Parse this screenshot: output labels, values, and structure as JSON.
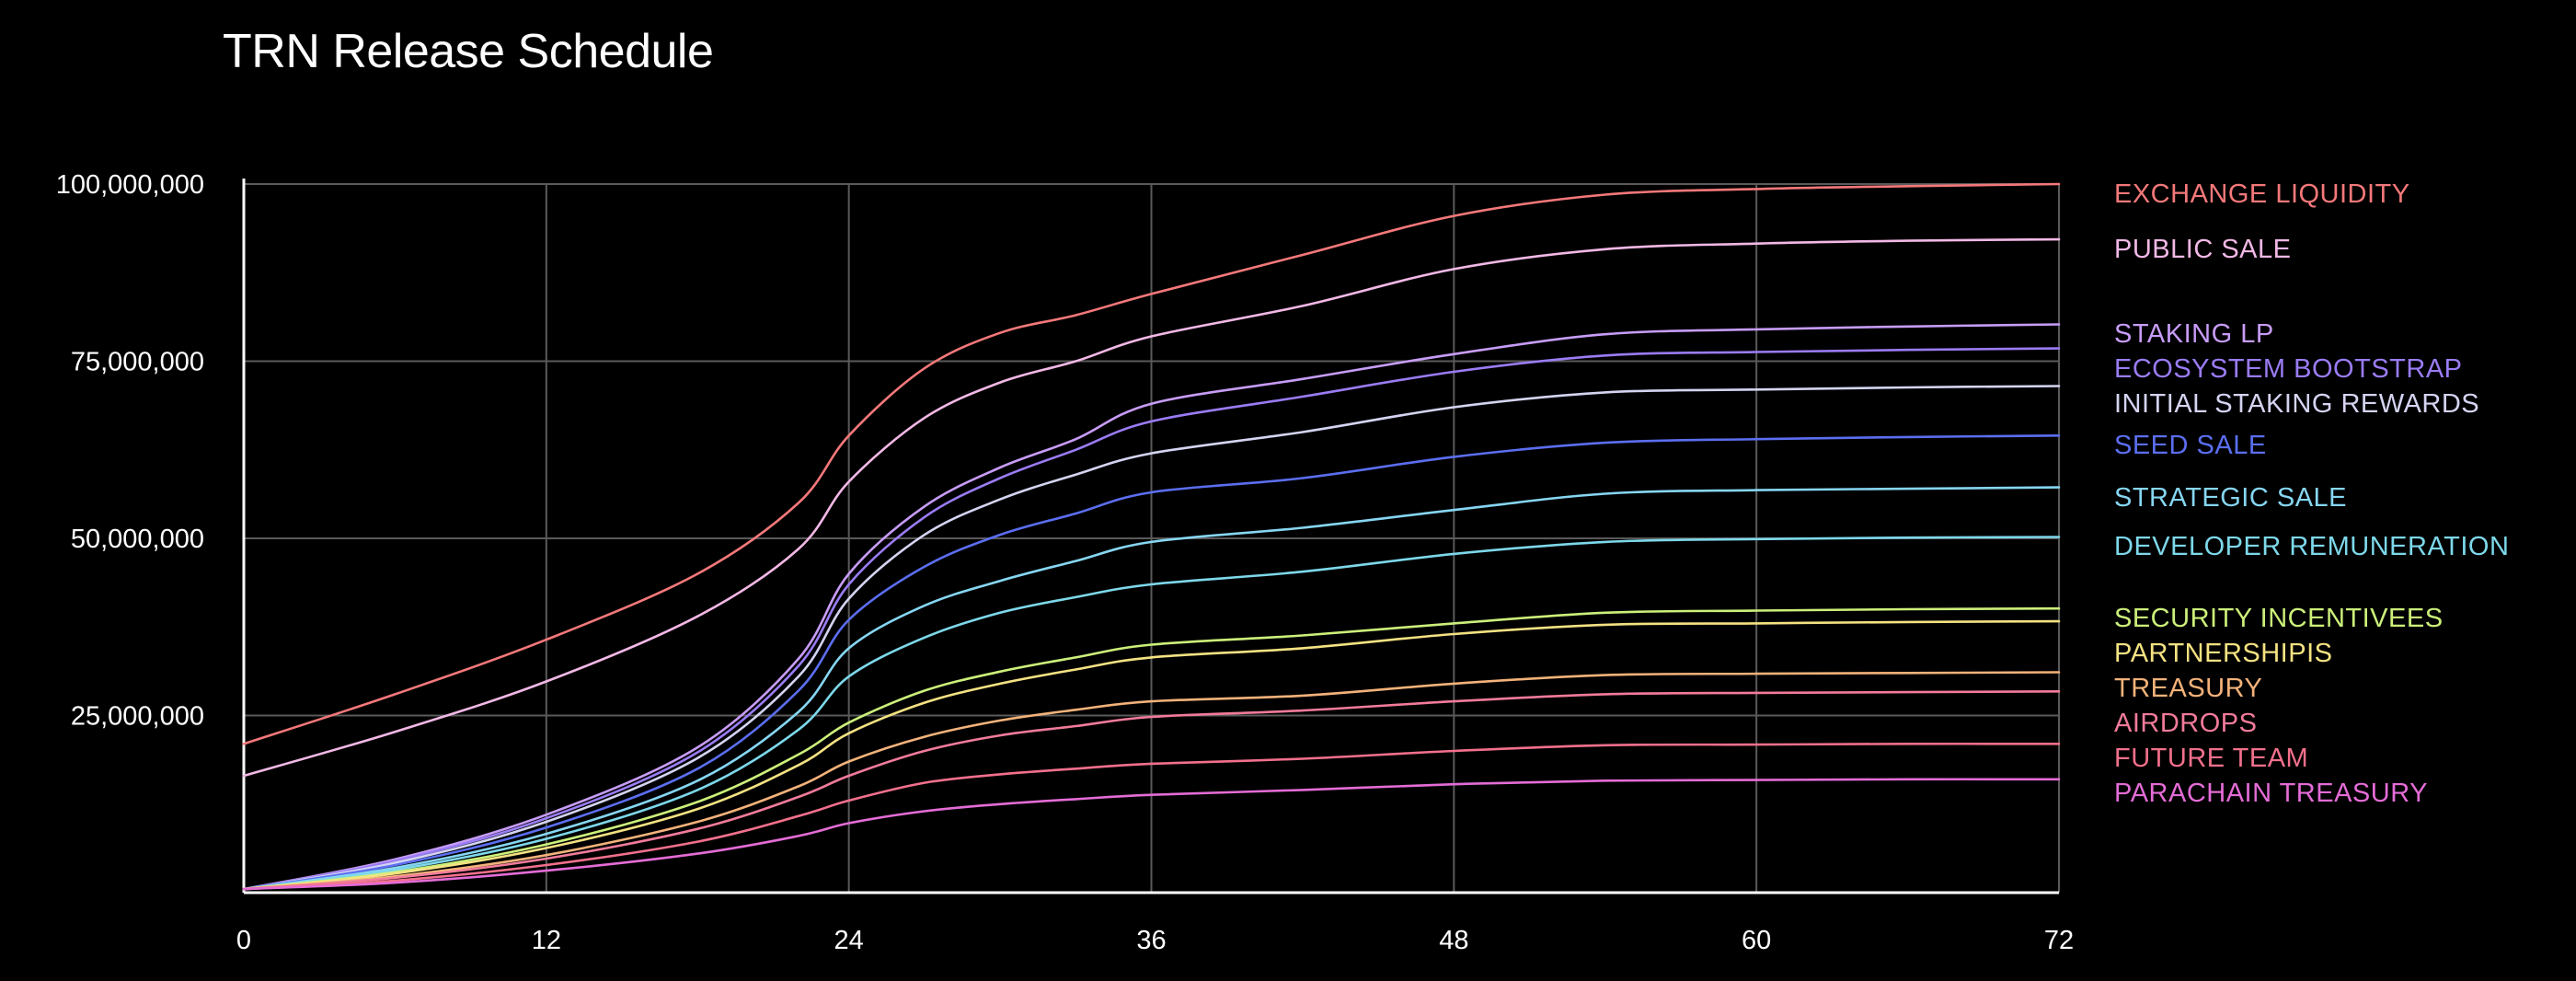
{
  "chart_data": {
    "type": "line",
    "title": "TRN Release Schedule",
    "xlabel": "",
    "ylabel": "",
    "xlim": [
      0,
      72
    ],
    "ylim": [
      0,
      100000000
    ],
    "x_ticks": [
      0,
      12,
      24,
      36,
      48,
      60,
      72
    ],
    "y_ticks": [
      25000000,
      50000000,
      75000000,
      100000000
    ],
    "y_tick_labels": [
      "25,000,000",
      "50,000,000",
      "75,000,000",
      "100,000,000"
    ],
    "grid": true,
    "legend_position": "right",
    "x": [
      0,
      6,
      12,
      18,
      22,
      24,
      27,
      30,
      33,
      36,
      42,
      48,
      54,
      60,
      66,
      72
    ],
    "series": [
      {
        "name": "EXCHANGE LIQUIDITY",
        "color": "#f4787a",
        "values": [
          21000000,
          28000000,
          35700000,
          45000000,
          55000000,
          64500000,
          74000000,
          79000000,
          81500000,
          84500000,
          90000000,
          95500000,
          98500000,
          99300000,
          99700000,
          100000000
        ]
      },
      {
        "name": "PUBLIC SALE",
        "color": "#f2b8e6",
        "values": [
          16500000,
          22700000,
          29800000,
          39000000,
          48500000,
          58000000,
          67000000,
          72000000,
          75000000,
          78500000,
          82800000,
          88000000,
          90800000,
          91600000,
          92000000,
          92200000
        ]
      },
      {
        "name": "STAKING LP",
        "color": "#c79cf7",
        "values": [
          500000,
          4700000,
          11000000,
          20500000,
          33000000,
          45000000,
          54500000,
          60000000,
          64000000,
          69000000,
          72500000,
          76000000,
          78800000,
          79500000,
          79900000,
          80200000
        ]
      },
      {
        "name": "ECOSYSTEM BOOTSTRAP",
        "color": "#9a7cf5",
        "values": [
          500000,
          4500000,
          10500000,
          19800000,
          32000000,
          43500000,
          53000000,
          58500000,
          62500000,
          66500000,
          70000000,
          73500000,
          75800000,
          76300000,
          76600000,
          76800000
        ]
      },
      {
        "name": "INITIAL STAKING REWARDS",
        "color": "#d4d4f2",
        "values": [
          500000,
          4200000,
          10000000,
          19000000,
          30500000,
          41500000,
          50500000,
          55500000,
          59000000,
          62000000,
          65000000,
          68500000,
          70600000,
          71000000,
          71300000,
          71500000
        ]
      },
      {
        "name": "SEED SALE",
        "color": "#5b6ef0",
        "values": [
          500000,
          3900000,
          9200000,
          17500000,
          28500000,
          38500000,
          46000000,
          50500000,
          53500000,
          56500000,
          58500000,
          61500000,
          63500000,
          64000000,
          64300000,
          64500000
        ]
      },
      {
        "name": "STRATEGIC SALE",
        "color": "#86d6f2",
        "values": [
          500000,
          3500000,
          8300000,
          15800000,
          25500000,
          34500000,
          40500000,
          44000000,
          46800000,
          49500000,
          51500000,
          54000000,
          56300000,
          56800000,
          57000000,
          57200000
        ]
      },
      {
        "name": "DEVELOPER REMUNERATION",
        "color": "#7dd8ea",
        "values": [
          500000,
          3200000,
          7600000,
          14500000,
          23000000,
          30500000,
          36000000,
          39500000,
          41700000,
          43500000,
          45300000,
          47800000,
          49500000,
          49900000,
          50100000,
          50200000
        ]
      },
      {
        "name": "SECURITY INCENTIVEES",
        "color": "#ccf07a",
        "values": [
          500000,
          2900000,
          6800000,
          12800000,
          19500000,
          24000000,
          28500000,
          31200000,
          33200000,
          35000000,
          36300000,
          38000000,
          39500000,
          39800000,
          40000000,
          40100000
        ]
      },
      {
        "name": "PARTNERSHIPIS",
        "color": "#f4e282",
        "values": [
          500000,
          2700000,
          6300000,
          11800000,
          18000000,
          22500000,
          26800000,
          29500000,
          31500000,
          33200000,
          34500000,
          36500000,
          37800000,
          38000000,
          38200000,
          38300000
        ]
      },
      {
        "name": "TREASURY",
        "color": "#f3b27a",
        "values": [
          500000,
          2300000,
          5300000,
          10000000,
          15000000,
          18500000,
          22000000,
          24300000,
          25800000,
          27000000,
          27800000,
          29500000,
          30700000,
          30900000,
          31000000,
          31100000
        ]
      },
      {
        "name": "AIRDROPS",
        "color": "#f27b9a",
        "values": [
          500000,
          2100000,
          4800000,
          9000000,
          13500000,
          16500000,
          20000000,
          22200000,
          23500000,
          24800000,
          25700000,
          27000000,
          28000000,
          28200000,
          28300000,
          28400000
        ]
      },
      {
        "name": "FUTURE TEAM",
        "color": "#f2708c",
        "values": [
          500000,
          1700000,
          3900000,
          7200000,
          10800000,
          13000000,
          15500000,
          16700000,
          17500000,
          18200000,
          18900000,
          20000000,
          20800000,
          20900000,
          21000000,
          21000000
        ]
      },
      {
        "name": "PARACHAIN TREASURY",
        "color": "#e46cd6",
        "values": [
          500000,
          1400000,
          3100000,
          5500000,
          8000000,
          9800000,
          11500000,
          12500000,
          13200000,
          13800000,
          14500000,
          15300000,
          15800000,
          15900000,
          16000000,
          16000000
        ]
      }
    ]
  }
}
